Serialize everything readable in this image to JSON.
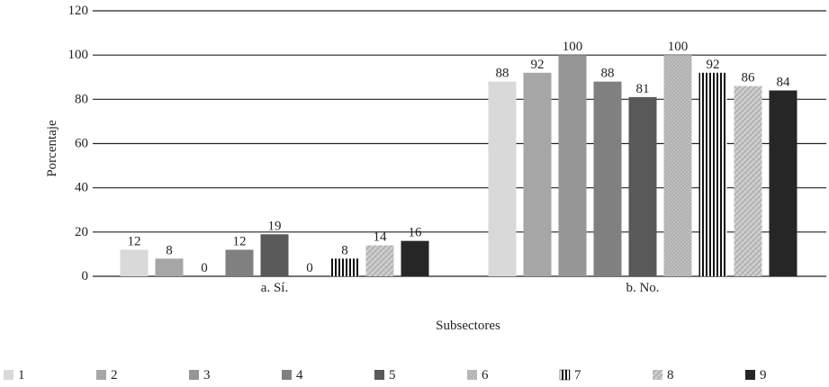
{
  "chart_data": {
    "type": "bar",
    "categories": [
      "a. Sí.",
      "b. No."
    ],
    "series": [
      {
        "name": "1",
        "values": [
          12,
          88
        ],
        "color": "#d9d9d9",
        "pattern": "solid"
      },
      {
        "name": "2",
        "values": [
          8,
          92
        ],
        "color": "#a6a6a6",
        "pattern": "solid"
      },
      {
        "name": "3",
        "values": [
          0,
          100
        ],
        "color": "#969696",
        "pattern": "solid"
      },
      {
        "name": "4",
        "values": [
          12,
          88
        ],
        "color": "#808080",
        "pattern": "solid"
      },
      {
        "name": "5",
        "values": [
          19,
          81
        ],
        "color": "#595959",
        "pattern": "solid"
      },
      {
        "name": "6",
        "values": [
          0,
          100
        ],
        "color": "#bfbfbf",
        "pattern": "dots"
      },
      {
        "name": "7",
        "values": [
          8,
          92
        ],
        "color": "#111111",
        "pattern": "vertical-stripes"
      },
      {
        "name": "8",
        "values": [
          14,
          86
        ],
        "color": "#c8c8c8",
        "pattern": "crosshatch"
      },
      {
        "name": "9",
        "values": [
          16,
          84
        ],
        "color": "#262626",
        "pattern": "solid"
      }
    ],
    "data_labels": [
      [
        "12",
        "8",
        "0",
        "12",
        "19",
        "0",
        "8",
        "14",
        "16"
      ],
      [
        "88",
        "92",
        "100",
        "88",
        "81",
        "100",
        "92",
        "86",
        "84"
      ]
    ],
    "xlabel": "Subsectores",
    "ylabel": "Porcentaje",
    "ylim": [
      0,
      120
    ],
    "yticks": [
      "0",
      "20",
      "40",
      "60",
      "80",
      "100",
      "120"
    ],
    "grid": true,
    "legend": "bottom"
  }
}
